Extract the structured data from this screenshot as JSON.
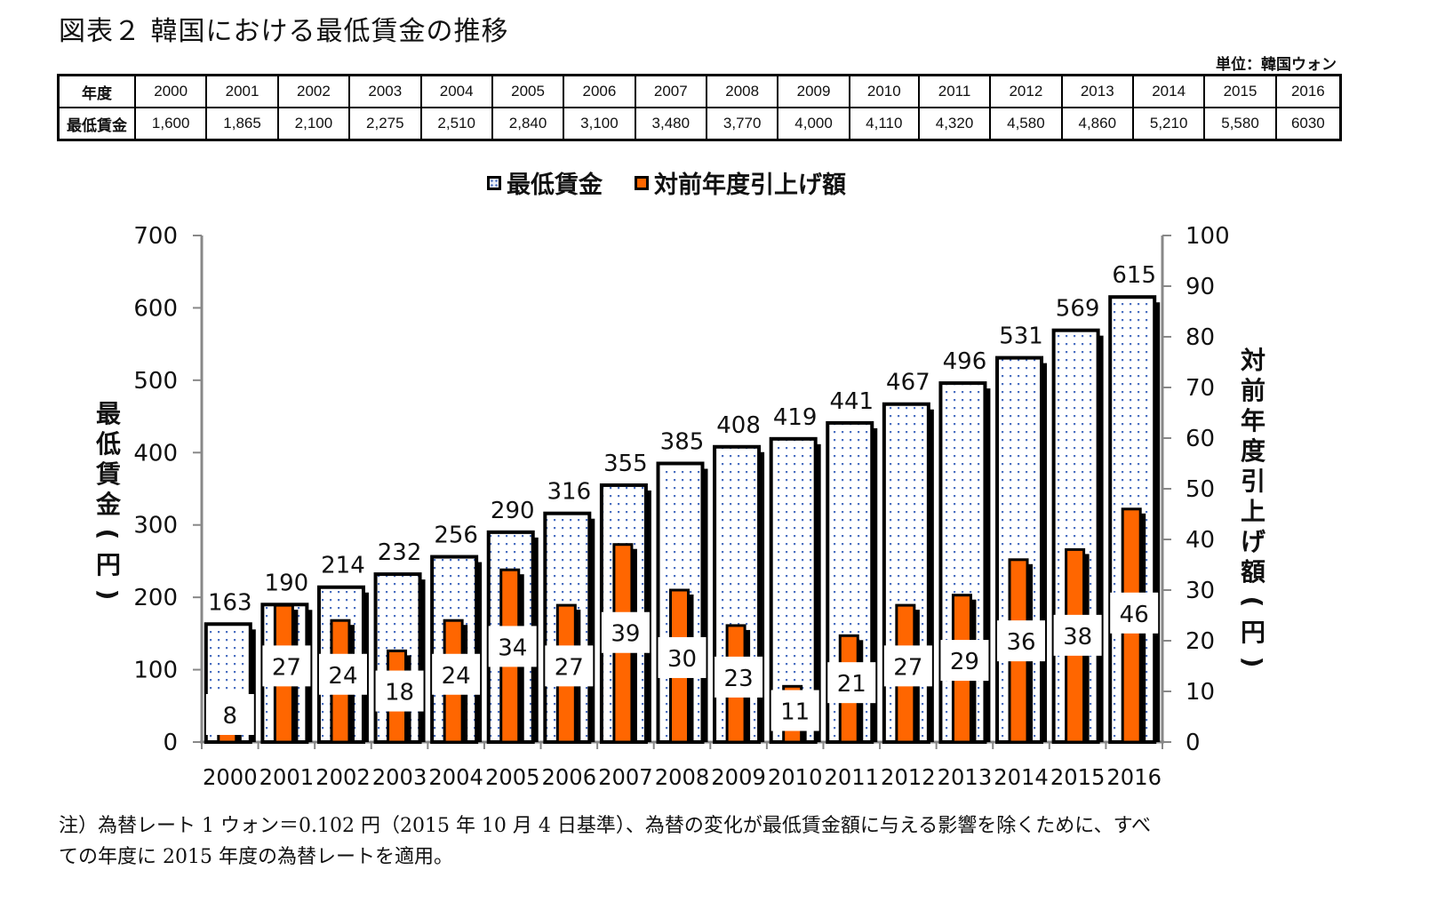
{
  "title": "図表２ 韓国における最低賃金の推移",
  "unit_label": "単位：韓国ウォン",
  "table": {
    "row_headers": [
      "年度",
      "最低賃金"
    ],
    "years": [
      "2000",
      "2001",
      "2002",
      "2003",
      "2004",
      "2005",
      "2006",
      "2007",
      "2008",
      "2009",
      "2010",
      "2011",
      "2012",
      "2013",
      "2014",
      "2015",
      "2016"
    ],
    "wages_won": [
      "1,600",
      "1,865",
      "2,100",
      "2,275",
      "2,510",
      "2,840",
      "3,100",
      "3,480",
      "3,770",
      "4,000",
      "4,110",
      "4,320",
      "4,580",
      "4,860",
      "5,210",
      "5,580",
      "6030"
    ]
  },
  "chart_data": {
    "type": "bar",
    "title": "",
    "categories": [
      "2000",
      "2001",
      "2002",
      "2003",
      "2004",
      "2005",
      "2006",
      "2007",
      "2008",
      "2009",
      "2010",
      "2011",
      "2012",
      "2013",
      "2014",
      "2015",
      "2016"
    ],
    "series": [
      {
        "name": "最低賃金",
        "axis": "left",
        "color": "#4a6fc1",
        "pattern": "dotted",
        "values": [
          163,
          190,
          214,
          232,
          256,
          290,
          316,
          355,
          385,
          408,
          419,
          441,
          467,
          496,
          531,
          569,
          615
        ]
      },
      {
        "name": "対前年度引上げ額",
        "axis": "right",
        "color": "#ff6600",
        "values": [
          8,
          27,
          24,
          18,
          24,
          34,
          27,
          39,
          30,
          23,
          11,
          21,
          27,
          29,
          36,
          38,
          46
        ]
      }
    ],
    "ylabel": "最低賃金（円）",
    "y2label": "対前年度引上げ額（円）",
    "ylim": [
      0,
      700
    ],
    "y2lim": [
      0,
      100
    ],
    "yticks": [
      0,
      100,
      200,
      300,
      400,
      500,
      600,
      700
    ],
    "y2ticks": [
      0,
      10,
      20,
      30,
      40,
      50,
      60,
      70,
      80,
      90,
      100
    ],
    "legend_position": "top-center",
    "grid": false
  },
  "note": {
    "line1": "注）為替レート 1 ウォン＝0.102 円（2015 年 10 月 4 日基準）、為替の変化が最低賃金額に与える影響を除くために、すべ",
    "line2": "ての年度に 2015 年度の為替レートを適用。"
  }
}
